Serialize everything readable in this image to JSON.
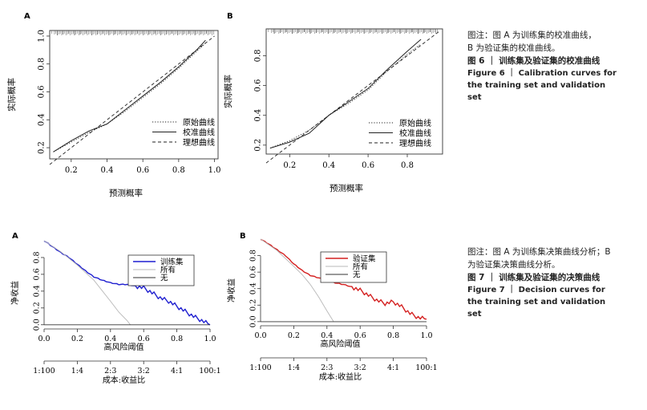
{
  "figure6": {
    "panels": [
      {
        "letter": "A",
        "ylabel": "实际概率",
        "xlabel": "预测概率",
        "xticks": [
          "0.2",
          "0.4",
          "0.6",
          "0.8",
          "1.0"
        ],
        "yticks": [
          "0.2",
          "0.4",
          "0.6",
          "0.8",
          "1.0"
        ],
        "legend": [
          "原始曲线",
          "校准曲线",
          "理想曲线"
        ]
      },
      {
        "letter": "B",
        "ylabel": "实际概率",
        "xlabel": "预测概率",
        "xticks": [
          "0.2",
          "0.4",
          "0.6",
          "0.8"
        ],
        "yticks": [
          "0.2",
          "0.4",
          "0.6",
          "0.8"
        ],
        "legend": [
          "原始曲线",
          "校准曲线",
          "理想曲线"
        ]
      }
    ],
    "caption_note_line1": "图注：图 A 为训练集的校准曲线，",
    "caption_note_line2": "B 为验证集的校准曲线。",
    "caption_zh": "图 6 ｜ 训练集及验证集的校准曲线",
    "caption_en": "Figure 6 ｜ Calibration curves for the training set and validation set"
  },
  "figure7": {
    "panels": [
      {
        "letter": "A",
        "ylabel": "净收益",
        "xlabel": "高风险阈值",
        "x2label": "成本:收益比",
        "xticks": [
          "0.0",
          "0.2",
          "0.4",
          "0.6",
          "0.8",
          "1.0"
        ],
        "x2ticks": [
          "1:100",
          "1:4",
          "2:3",
          "3:2",
          "4:1",
          "100:1"
        ],
        "yticks": [
          "0.0",
          "0.2",
          "0.4",
          "0.6",
          "0.8"
        ],
        "legend": [
          "训练集",
          "所有",
          "无"
        ],
        "model_color": "#1f1fd0"
      },
      {
        "letter": "B",
        "ylabel": "净收益",
        "xlabel": "高风险阈值",
        "x2label": "成本:收益比",
        "xticks": [
          "0.0",
          "0.2",
          "0.4",
          "0.6",
          "0.8",
          "1.0"
        ],
        "x2ticks": [
          "1:100",
          "1:4",
          "2:3",
          "3:2",
          "4:1",
          "100:1"
        ],
        "yticks": [
          "0.0",
          "0.2",
          "0.4",
          "0.6",
          "0.8"
        ],
        "legend": [
          "验证集",
          "所有",
          "无"
        ],
        "model_color": "#d42020"
      }
    ],
    "caption_note": "图注：图 A 为训练集决策曲线分析；B 为验证集决策曲线分析。",
    "caption_zh": "图 7 ｜ 训练集及验证集的决策曲线",
    "caption_en": "Figure 7 ｜ Decision curves for the training set and validation set"
  },
  "chart_data": [
    {
      "type": "line",
      "title": "A",
      "xlabel": "预测概率",
      "ylabel": "实际概率",
      "xlim": [
        0.08,
        1.02
      ],
      "ylim": [
        0.12,
        1.04
      ],
      "series": [
        {
          "name": "原始曲线",
          "style": "dotted",
          "x": [
            0.1,
            0.2,
            0.3,
            0.4,
            0.5,
            0.6,
            0.7,
            0.8,
            0.9,
            0.95
          ],
          "y": [
            0.17,
            0.24,
            0.31,
            0.37,
            0.46,
            0.56,
            0.66,
            0.77,
            0.89,
            0.95
          ]
        },
        {
          "name": "校准曲线",
          "style": "solid",
          "x": [
            0.1,
            0.2,
            0.3,
            0.4,
            0.5,
            0.6,
            0.7,
            0.8,
            0.9,
            0.95
          ],
          "y": [
            0.17,
            0.25,
            0.32,
            0.37,
            0.47,
            0.57,
            0.67,
            0.78,
            0.9,
            0.97
          ]
        },
        {
          "name": "理想曲线",
          "style": "dashed",
          "x": [
            0.08,
            1.0
          ],
          "y": [
            0.08,
            1.0
          ]
        }
      ]
    },
    {
      "type": "line",
      "title": "B",
      "xlabel": "预测概率",
      "ylabel": "实际概率",
      "xlim": [
        0.08,
        0.98
      ],
      "ylim": [
        0.14,
        0.98
      ],
      "series": [
        {
          "name": "原始曲线",
          "style": "dotted",
          "x": [
            0.1,
            0.2,
            0.3,
            0.4,
            0.5,
            0.6,
            0.7,
            0.8,
            0.87
          ],
          "y": [
            0.18,
            0.23,
            0.3,
            0.4,
            0.48,
            0.57,
            0.7,
            0.81,
            0.88
          ]
        },
        {
          "name": "校准曲线",
          "style": "solid",
          "x": [
            0.1,
            0.2,
            0.3,
            0.4,
            0.5,
            0.6,
            0.7,
            0.8,
            0.87
          ],
          "y": [
            0.18,
            0.22,
            0.28,
            0.4,
            0.49,
            0.58,
            0.71,
            0.83,
            0.91
          ]
        },
        {
          "name": "理想曲线",
          "style": "dashed",
          "x": [
            0.08,
            0.96
          ],
          "y": [
            0.08,
            0.96
          ]
        }
      ]
    },
    {
      "type": "line",
      "title": "A",
      "xlabel": "高风险阈值",
      "ylabel": "净收益",
      "xlim": [
        0.0,
        1.0
      ],
      "ylim": [
        -0.05,
        1.0
      ],
      "series": [
        {
          "name": "训练集",
          "color": "#1f1fd0",
          "x": [
            0.0,
            0.05,
            0.1,
            0.15,
            0.2,
            0.25,
            0.3,
            0.35,
            0.4,
            0.45,
            0.5,
            0.55,
            0.6,
            0.65,
            0.7,
            0.75,
            0.8,
            0.85,
            0.9,
            0.95,
            1.0
          ],
          "y": [
            1.0,
            0.93,
            0.86,
            0.8,
            0.72,
            0.64,
            0.57,
            0.53,
            0.5,
            0.48,
            0.48,
            0.46,
            0.44,
            0.38,
            0.32,
            0.28,
            0.22,
            0.16,
            0.1,
            0.05,
            0.0
          ]
        },
        {
          "name": "所有",
          "x": [
            0.0,
            0.1,
            0.2,
            0.3,
            0.4,
            0.45,
            0.5,
            0.52
          ],
          "y": [
            1.0,
            0.87,
            0.71,
            0.53,
            0.28,
            0.15,
            0.05,
            0.0
          ]
        },
        {
          "name": "无",
          "x": [
            0.0,
            1.0
          ],
          "y": [
            0.0,
            0.0
          ]
        }
      ]
    },
    {
      "type": "line",
      "title": "B",
      "xlabel": "高风险阈值",
      "ylabel": "净收益",
      "xlim": [
        0.0,
        1.0
      ],
      "ylim": [
        -0.05,
        1.0
      ],
      "series": [
        {
          "name": "验证集",
          "color": "#d42020",
          "x": [
            0.0,
            0.05,
            0.1,
            0.15,
            0.2,
            0.25,
            0.3,
            0.35,
            0.4,
            0.45,
            0.5,
            0.55,
            0.6,
            0.65,
            0.7,
            0.75,
            0.8,
            0.85,
            0.9,
            0.95,
            1.0
          ],
          "y": [
            1.0,
            0.94,
            0.87,
            0.8,
            0.7,
            0.62,
            0.56,
            0.53,
            0.5,
            0.47,
            0.45,
            0.42,
            0.38,
            0.32,
            0.26,
            0.22,
            0.24,
            0.18,
            0.1,
            0.05,
            0.03
          ]
        },
        {
          "name": "所有",
          "x": [
            0.0,
            0.1,
            0.2,
            0.25,
            0.3,
            0.35,
            0.4,
            0.44
          ],
          "y": [
            1.0,
            0.86,
            0.67,
            0.57,
            0.45,
            0.3,
            0.13,
            0.0
          ]
        },
        {
          "name": "无",
          "x": [
            0.0,
            1.0
          ],
          "y": [
            0.0,
            0.0
          ]
        }
      ]
    }
  ]
}
